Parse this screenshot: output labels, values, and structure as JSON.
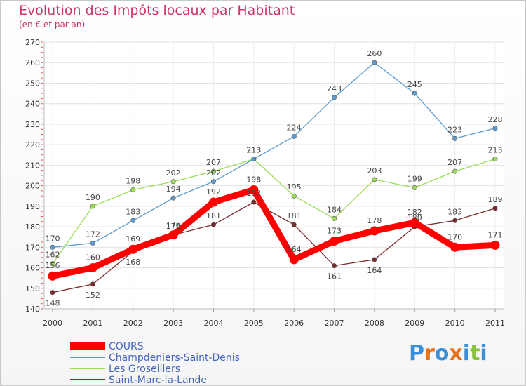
{
  "header": {
    "title": "Evolution des Impôts locaux par Habitant",
    "subtitle": "(en € et par an)"
  },
  "logo": {
    "text": "Proxiti",
    "colors": [
      "#3a8fd8",
      "#e8711c",
      "#3a8fd8",
      "#e8711c",
      "#3a8fd8",
      "#8ac43f",
      "#3a8fd8"
    ]
  },
  "chart_data": {
    "type": "line",
    "x": [
      "2000",
      "2001",
      "2002",
      "2003",
      "2004",
      "2005",
      "2006",
      "2007",
      "2008",
      "2009",
      "2010",
      "2011"
    ],
    "ylim": [
      140,
      270
    ],
    "yticks": [
      140,
      150,
      160,
      170,
      180,
      190,
      200,
      210,
      220,
      230,
      240,
      250,
      260,
      270
    ],
    "grid": true,
    "legend_position": "bottom-left",
    "series": [
      {
        "name": "COURS",
        "color": "#ff0000",
        "values": [
          156,
          160,
          169,
          176,
          192,
          198,
          164,
          173,
          178,
          182,
          170,
          171
        ],
        "labels": [
          "156",
          "160",
          "169",
          "176",
          "192",
          "198",
          "164",
          "173",
          "178",
          "182",
          "170",
          "171"
        ]
      },
      {
        "name": "Champdeniers-Saint-Denis",
        "color": "#5b9bd0",
        "values": [
          170,
          172,
          183,
          194,
          202,
          213,
          224,
          243,
          260,
          245,
          223,
          228
        ],
        "labels": [
          "170",
          "172",
          "183",
          "194",
          "202",
          "213",
          "224",
          "243",
          "260",
          "245",
          "223",
          "228"
        ]
      },
      {
        "name": "Les Groseillers",
        "color": "#99dd55",
        "values": [
          162,
          190,
          198,
          202,
          207,
          213,
          195,
          184,
          203,
          199,
          207,
          213
        ],
        "labels": [
          "162",
          "190",
          "198",
          "202",
          "207",
          "213",
          "195",
          "184",
          "203",
          "199",
          "207",
          "213"
        ]
      },
      {
        "name": "Saint-Marc-la-Lande",
        "color": "#7a2a2a",
        "values": [
          148,
          152,
          168,
          176,
          181,
          192,
          181,
          161,
          164,
          180,
          183,
          189
        ],
        "labels": [
          "148",
          "152",
          "168",
          "176",
          "181",
          "192",
          "181",
          "161",
          "164",
          "180",
          "183",
          "189"
        ]
      }
    ]
  }
}
